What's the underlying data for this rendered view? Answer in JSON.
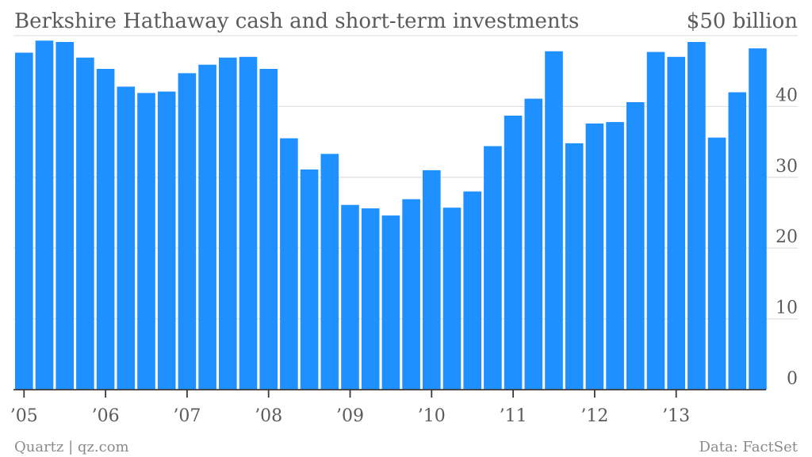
{
  "chart_data": {
    "type": "bar",
    "title": "Berkshire Hathaway cash and short-term investments",
    "unit_label": "$50 billion",
    "xlabel": "",
    "ylabel": "",
    "ylim": [
      0,
      50
    ],
    "y_ticks": [
      0,
      10,
      20,
      30,
      40
    ],
    "y_tick_labels": [
      "0",
      "10",
      "20",
      "30",
      "40"
    ],
    "x_tick_labels": [
      {
        "label": "’05",
        "index": 0
      },
      {
        "label": "’06",
        "index": 4
      },
      {
        "label": "’07",
        "index": 8
      },
      {
        "label": "’08",
        "index": 12
      },
      {
        "label": "’09",
        "index": 16
      },
      {
        "label": "’10",
        "index": 20
      },
      {
        "label": "’11",
        "index": 24
      },
      {
        "label": "’12",
        "index": 28
      },
      {
        "label": "’13",
        "index": 32
      }
    ],
    "categories": [
      "Q1 2005",
      "Q2 2005",
      "Q3 2005",
      "Q4 2005",
      "Q1 2006",
      "Q2 2006",
      "Q3 2006",
      "Q4 2006",
      "Q1 2007",
      "Q2 2007",
      "Q3 2007",
      "Q4 2007",
      "Q1 2008",
      "Q2 2008",
      "Q3 2008",
      "Q4 2008",
      "Q1 2009",
      "Q2 2009",
      "Q3 2009",
      "Q4 2009",
      "Q1 2010",
      "Q2 2010",
      "Q3 2010",
      "Q4 2010",
      "Q1 2011",
      "Q2 2011",
      "Q3 2011",
      "Q4 2011",
      "Q1 2012",
      "Q2 2012",
      "Q3 2012",
      "Q4 2012",
      "Q1 2013",
      "Q2 2013",
      "Q3 2013",
      "Q4 2013",
      "Q1 2014"
    ],
    "values": [
      47.6,
      49.3,
      49.1,
      46.9,
      45.3,
      42.8,
      41.9,
      42.1,
      44.7,
      45.9,
      46.9,
      47.0,
      45.3,
      35.5,
      31.1,
      33.3,
      26.1,
      25.6,
      24.6,
      26.9,
      31.0,
      25.7,
      28.0,
      34.4,
      38.7,
      41.1,
      47.8,
      34.8,
      37.6,
      37.8,
      40.6,
      47.7,
      47.0,
      49.1,
      35.6,
      42.0,
      48.2
    ],
    "grid": true,
    "y_axis_position": "right",
    "source": "Data: FactSet",
    "credit": "Quartz | qz.com"
  }
}
